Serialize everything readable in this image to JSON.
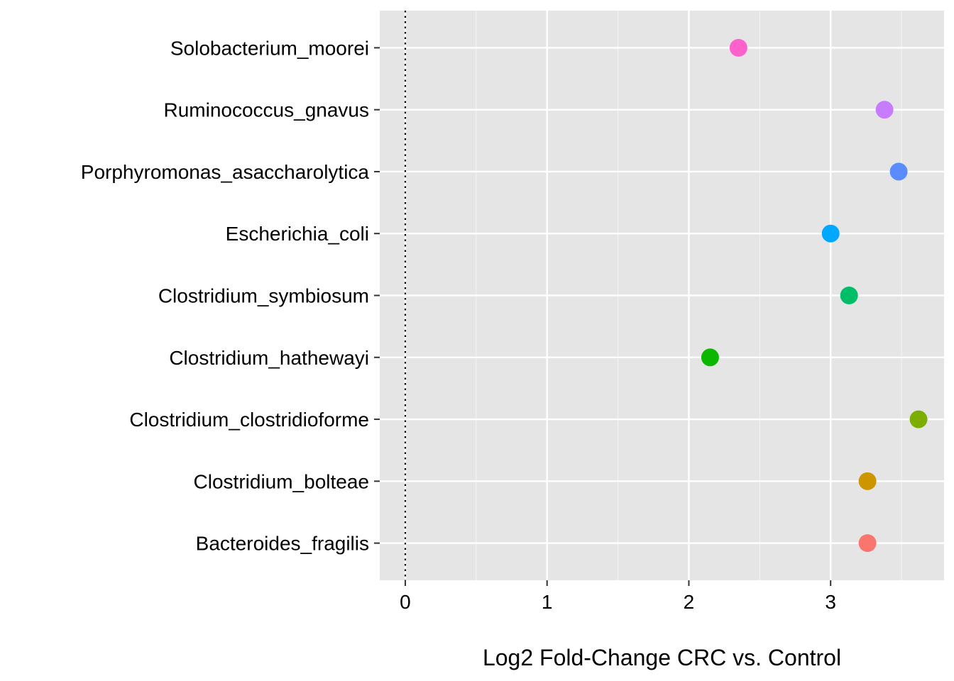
{
  "chart_data": {
    "type": "scatter",
    "title": "",
    "xlabel": "Log2 Fold-Change CRC vs. Control",
    "ylabel": "",
    "xlim": [
      -0.18,
      3.8
    ],
    "x_ticks": [
      "0",
      "1",
      "2",
      "3"
    ],
    "grid": true,
    "legend": "none",
    "reference_line": {
      "x": 0,
      "style": "dotted"
    },
    "categories": [
      "Bacteroides_fragilis",
      "Clostridium_bolteae",
      "Clostridium_clostridioforme",
      "Clostridium_hathewayi",
      "Clostridium_symbiosum",
      "Escherichia_coli",
      "Porphyromonas_asaccharolytica",
      "Ruminococcus_gnavus",
      "Solobacterium_moorei"
    ],
    "values": [
      3.26,
      3.26,
      3.62,
      2.15,
      3.13,
      3.0,
      3.48,
      3.38,
      2.35
    ],
    "colors": [
      "#F8766D",
      "#CD9600",
      "#7CAE00",
      "#0CB702",
      "#00BE67",
      "#00A9FF",
      "#5B8CFF",
      "#C77CFF",
      "#FF61CC"
    ]
  }
}
